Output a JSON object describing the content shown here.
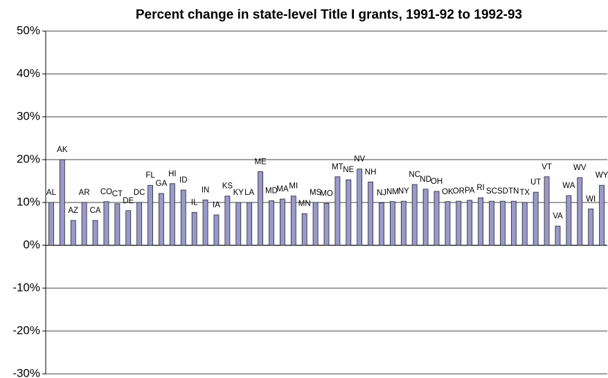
{
  "chart_data": {
    "type": "bar",
    "title": "Percent change in state-level Title I grants, 1991-92 to 1992-93",
    "categories": [
      "AL",
      "AK",
      "AZ",
      "AR",
      "CA",
      "CO",
      "CT",
      "DE",
      "DC",
      "FL",
      "GA",
      "HI",
      "ID",
      "IL",
      "IN",
      "IA",
      "KS",
      "KY",
      "LA",
      "ME",
      "MD",
      "MA",
      "MI",
      "MN",
      "MS",
      "MO",
      "MT",
      "NE",
      "NV",
      "NH",
      "NJ",
      "NM",
      "NY",
      "NC",
      "ND",
      "OH",
      "OK",
      "OR",
      "PA",
      "RI",
      "SC",
      "SD",
      "TN",
      "TX",
      "UT",
      "VT",
      "VA",
      "WA",
      "WV",
      "WI",
      "WY"
    ],
    "values": [
      10,
      20,
      5.8,
      10,
      5.8,
      10.2,
      9.7,
      8.1,
      10,
      14,
      12.1,
      14.4,
      12.9,
      7.7,
      10.6,
      7.1,
      11.5,
      10,
      10,
      17.2,
      10.4,
      10.8,
      11.5,
      7.4,
      10,
      9.8,
      16,
      15.3,
      17.8,
      14.8,
      9.9,
      10.2,
      10.3,
      14.2,
      13.1,
      12.6,
      10.2,
      10.3,
      10.5,
      11.1,
      10.3,
      10.3,
      10.3,
      10,
      12.4,
      16,
      4.5,
      11.6,
      15.8,
      8.5,
      14
    ],
    "color": "#9999cc",
    "ylim": [
      -30,
      50
    ],
    "yticks": [
      {
        "value": -30,
        "label": "-30%"
      },
      {
        "value": -20,
        "label": "-20%"
      },
      {
        "value": -10,
        "label": "-10%"
      },
      {
        "value": 0,
        "label": "0%"
      },
      {
        "value": 10,
        "label": "10%"
      },
      {
        "value": 20,
        "label": "20%"
      },
      {
        "value": 30,
        "label": "30%"
      },
      {
        "value": 40,
        "label": "40%"
      },
      {
        "value": 50,
        "label": "50%"
      }
    ],
    "grid": true
  }
}
